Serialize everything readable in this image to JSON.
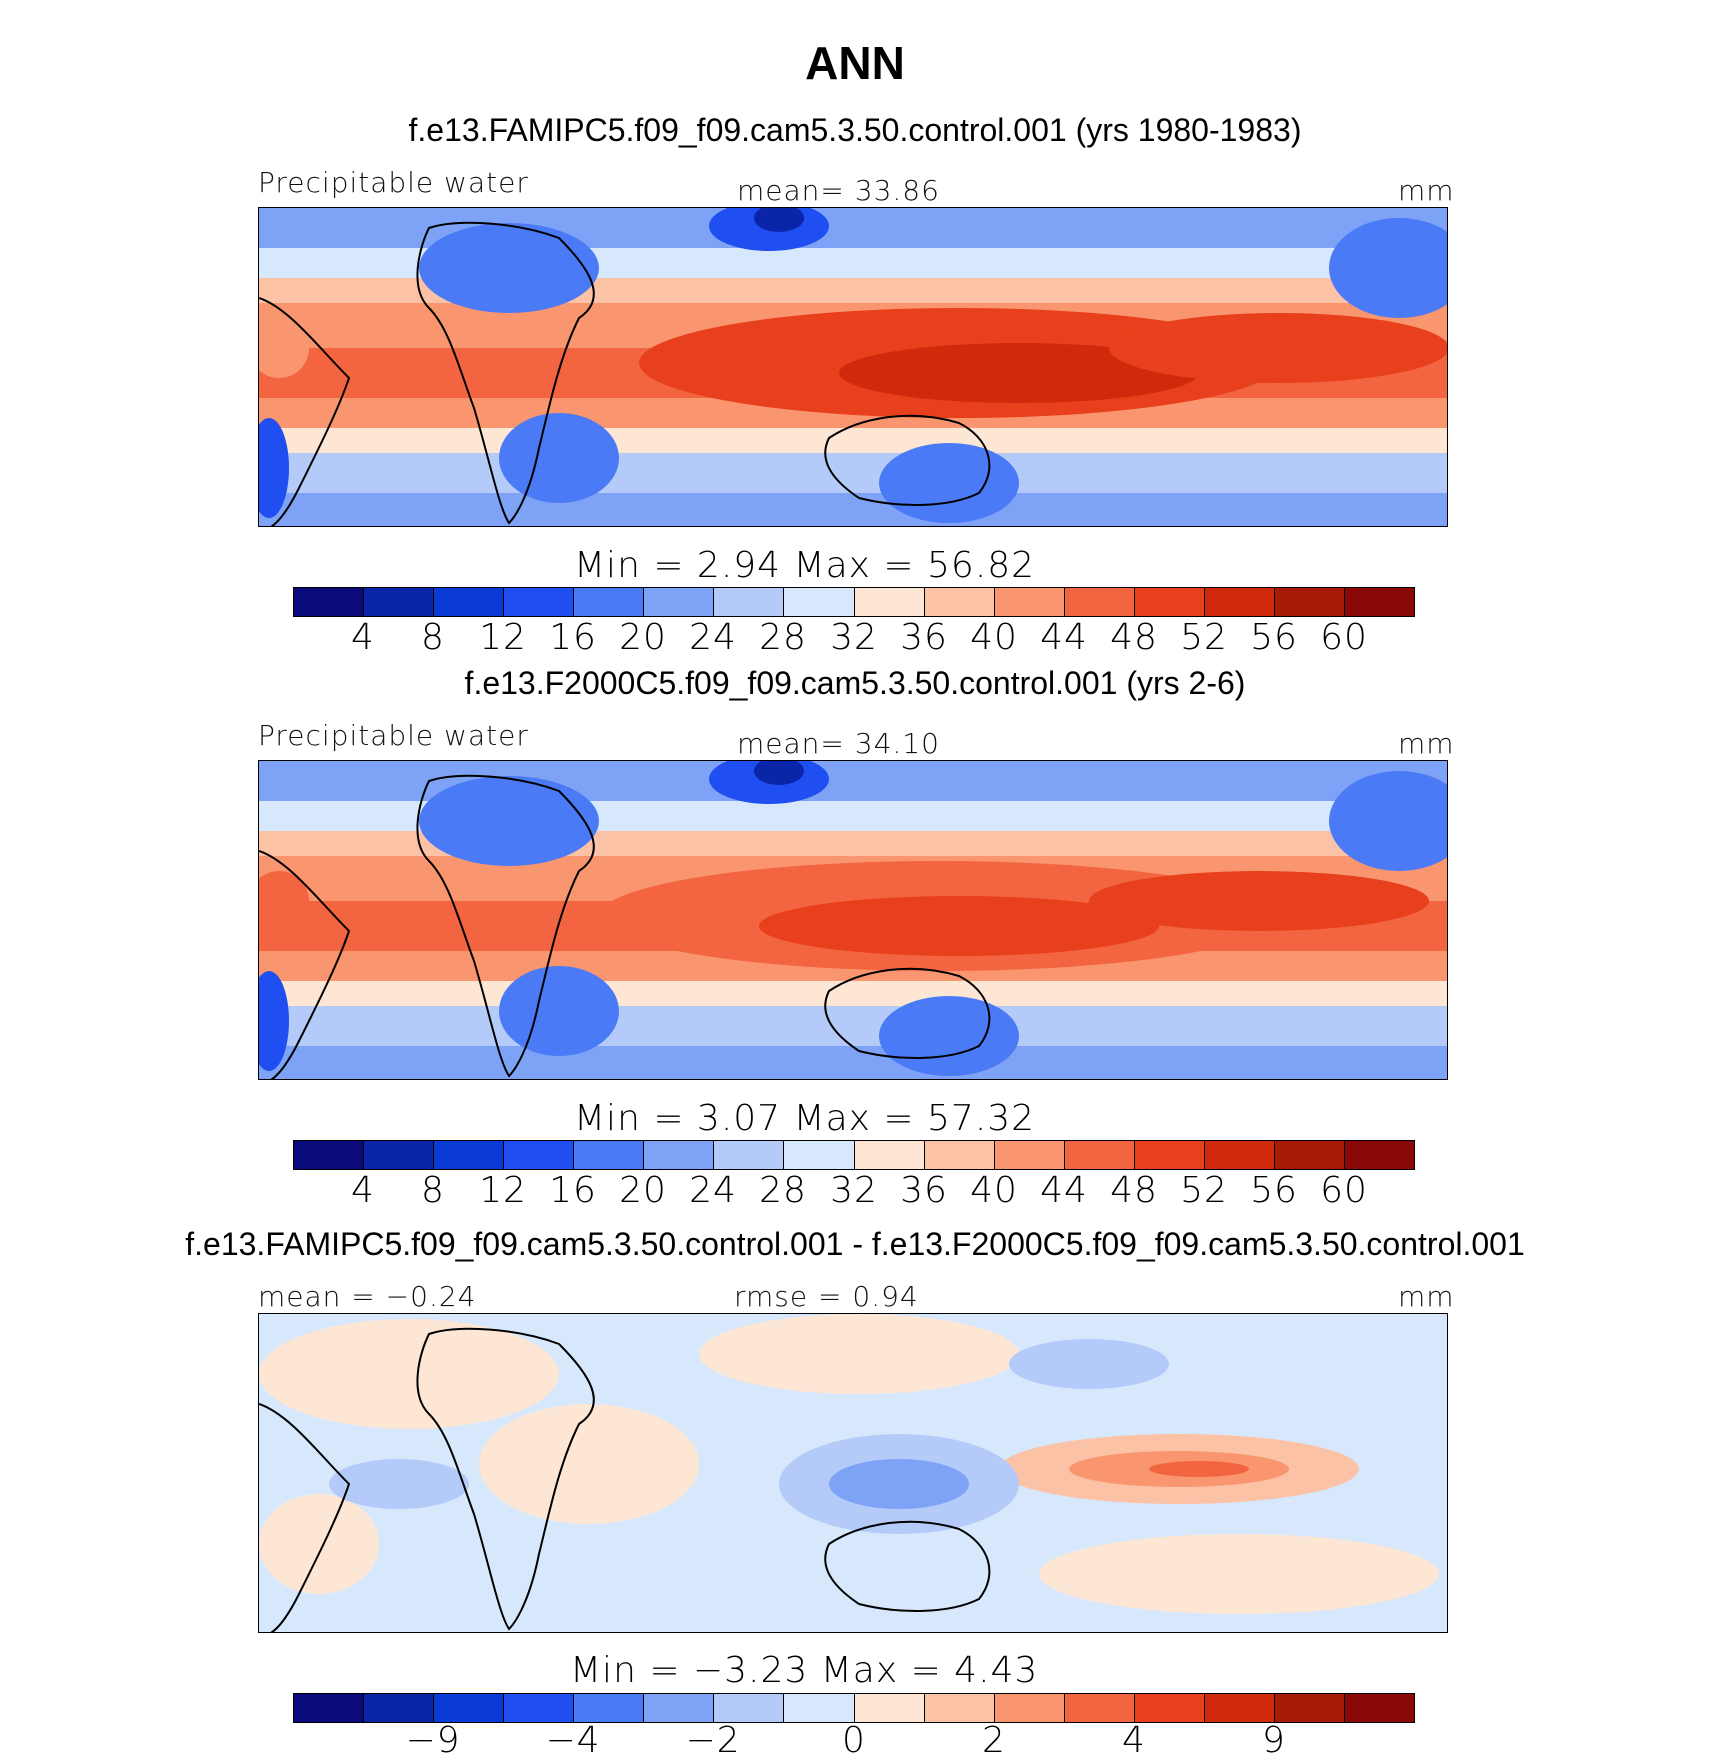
{
  "main_title": "ANN",
  "panels": [
    {
      "case_title": "f.e13.FAMIPC5.f09_f09.cam5.3.50.control.001 (yrs 1980-1983)",
      "left_label": "Precipitable  water",
      "center_label": "mean=   33.86",
      "right_label": "mm",
      "minmax_label": "Min  =     2.94  Max  =    56.82",
      "colorbar_ticks": [
        "4",
        "8",
        "12",
        "16",
        "20",
        "24",
        "28",
        "32",
        "36",
        "40",
        "44",
        "48",
        "52",
        "56",
        "60"
      ]
    },
    {
      "case_title": "f.e13.F2000C5.f09_f09.cam5.3.50.control.001 (yrs 2-6)",
      "left_label": "Precipitable  water",
      "center_label": "mean=   34.10",
      "right_label": "mm",
      "minmax_label": "Min  =     3.07  Max  =    57.32",
      "colorbar_ticks": [
        "4",
        "8",
        "12",
        "16",
        "20",
        "24",
        "28",
        "32",
        "36",
        "40",
        "44",
        "48",
        "52",
        "56",
        "60"
      ]
    },
    {
      "case_title": "f.e13.FAMIPC5.f09_f09.cam5.3.50.control.001 - f.e13.F2000C5.f09_f09.cam5.3.50.control.001",
      "left_label": "mean  =   −0.24",
      "center_label": "rmse  =     0.94",
      "right_label": "mm",
      "minmax_label": "Min  =   −3.23  Max  =      4.43",
      "colorbar_ticks": [
        "−9",
        "−4",
        "−2",
        "0",
        "2",
        "4",
        "9"
      ]
    }
  ],
  "colors": {
    "palette": [
      "#0a0a7a",
      "#0a25a8",
      "#0a3bd6",
      "#1f4ff0",
      "#4a7af5",
      "#7ea2f5",
      "#b4cbfa",
      "#d8e8fc",
      "#fde6d4",
      "#fcc2a6",
      "#f99670",
      "#f36540",
      "#e8401c",
      "#d02a0c",
      "#a81a08",
      "#8a0808"
    ]
  }
}
